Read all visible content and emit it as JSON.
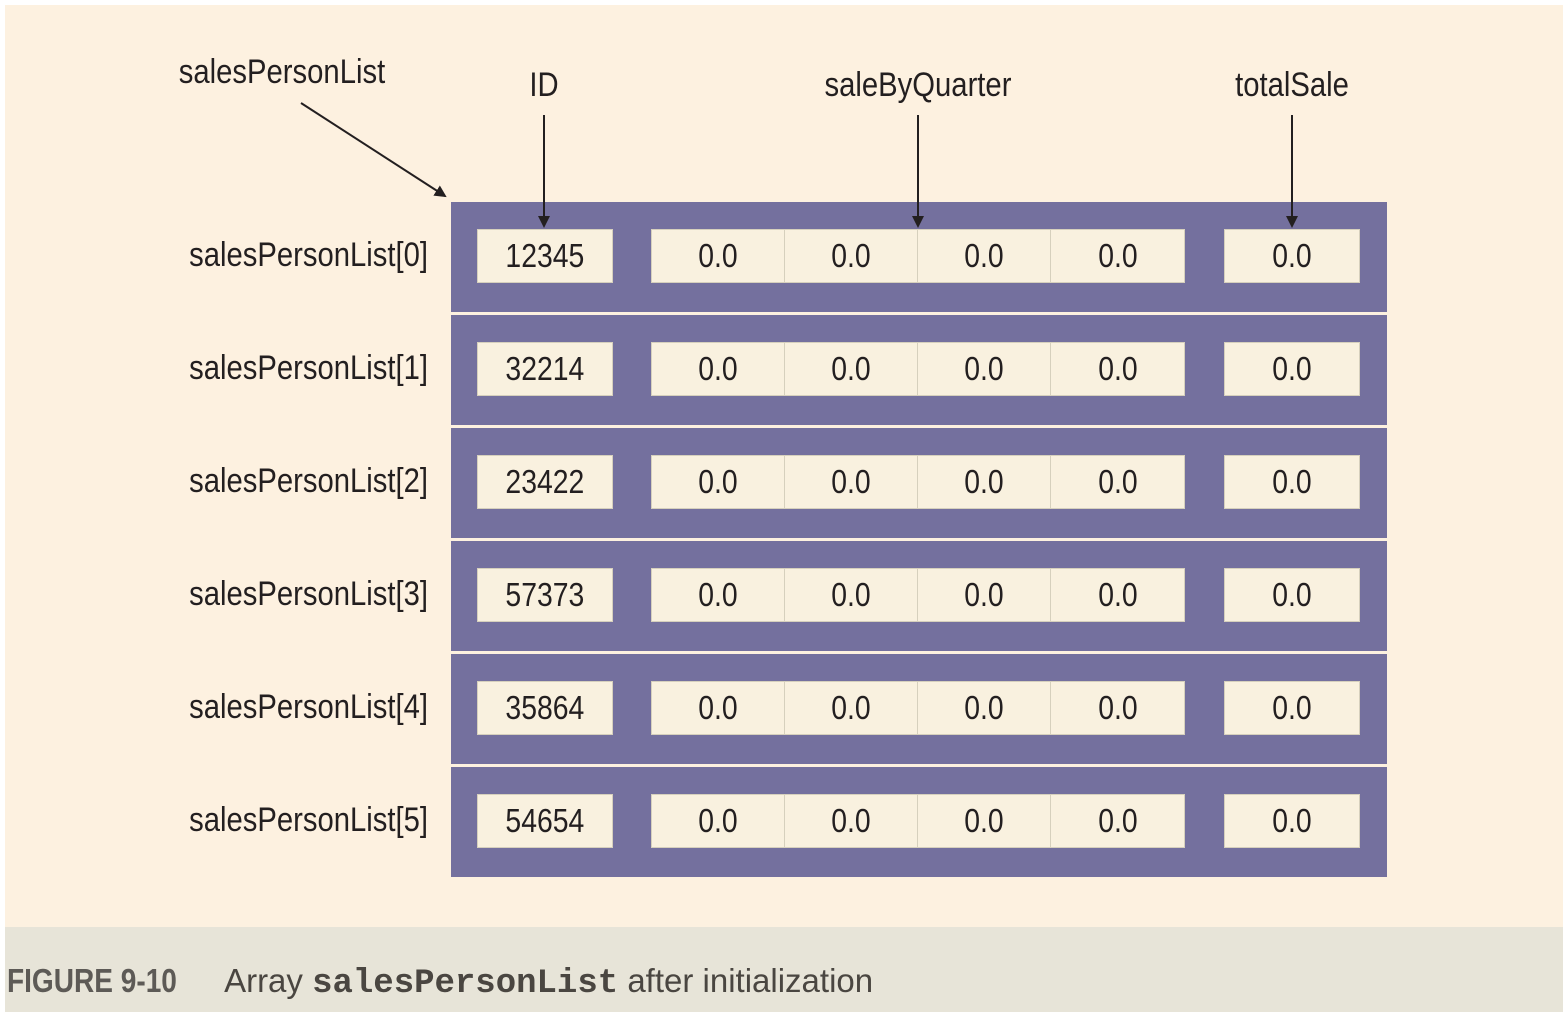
{
  "labels": {
    "array_name": "salesPersonList",
    "id_field": "ID",
    "quarter_field": "saleByQuarter",
    "total_field": "totalSale"
  },
  "rows": [
    {
      "label": "salesPersonList[0]",
      "id": "12345",
      "quarters": [
        "0.0",
        "0.0",
        "0.0",
        "0.0"
      ],
      "total": "0.0"
    },
    {
      "label": "salesPersonList[1]",
      "id": "32214",
      "quarters": [
        "0.0",
        "0.0",
        "0.0",
        "0.0"
      ],
      "total": "0.0"
    },
    {
      "label": "salesPersonList[2]",
      "id": "23422",
      "quarters": [
        "0.0",
        "0.0",
        "0.0",
        "0.0"
      ],
      "total": "0.0"
    },
    {
      "label": "salesPersonList[3]",
      "id": "57373",
      "quarters": [
        "0.0",
        "0.0",
        "0.0",
        "0.0"
      ],
      "total": "0.0"
    },
    {
      "label": "salesPersonList[4]",
      "id": "35864",
      "quarters": [
        "0.0",
        "0.0",
        "0.0",
        "0.0"
      ],
      "total": "0.0"
    },
    {
      "label": "salesPersonList[5]",
      "id": "54654",
      "quarters": [
        "0.0",
        "0.0",
        "0.0",
        "0.0"
      ],
      "total": "0.0"
    }
  ],
  "caption": {
    "figure_number": "FIGURE 9-10",
    "text_before": "Array",
    "code": "salesPersonList",
    "text_after": "after initialization"
  },
  "colors": {
    "background": "#fdf1e0",
    "record_fill": "#74709e",
    "cell_fill": "#f9f1df",
    "caption_bar": "#e7e4d8"
  }
}
